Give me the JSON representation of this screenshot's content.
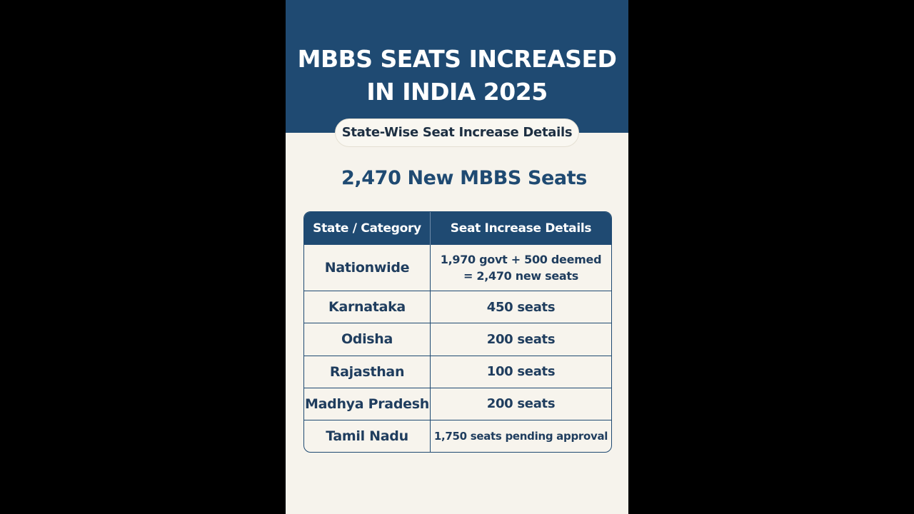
{
  "title": {
    "line1": "MBBS SEATS INCREASED",
    "line2": "IN INDIA 2025"
  },
  "subtitle": "State-Wise Seat Increase Details",
  "headline": "2,470 New MBBS Seats",
  "table": {
    "headers": [
      "State / Category",
      "Seat Increase Details"
    ],
    "rows": [
      {
        "state": "Nationwide",
        "detail_line1": "1,970 govt + 500 deemed",
        "detail_line2": "= 2,470 new seats"
      },
      {
        "state": "Karnataka",
        "detail": "450 seats"
      },
      {
        "state": "Odisha",
        "detail": "200 seats"
      },
      {
        "state": "Rajasthan",
        "detail": "100 seats"
      },
      {
        "state": "Madhya Pradesh",
        "detail": "200 seats"
      },
      {
        "state": "Tamil Nadu",
        "detail": "1,750 seats pending approval"
      }
    ]
  },
  "colors": {
    "primary_navy": "#1f4a72",
    "background_cream": "#f6f3ec",
    "outer_background": "#000000"
  }
}
